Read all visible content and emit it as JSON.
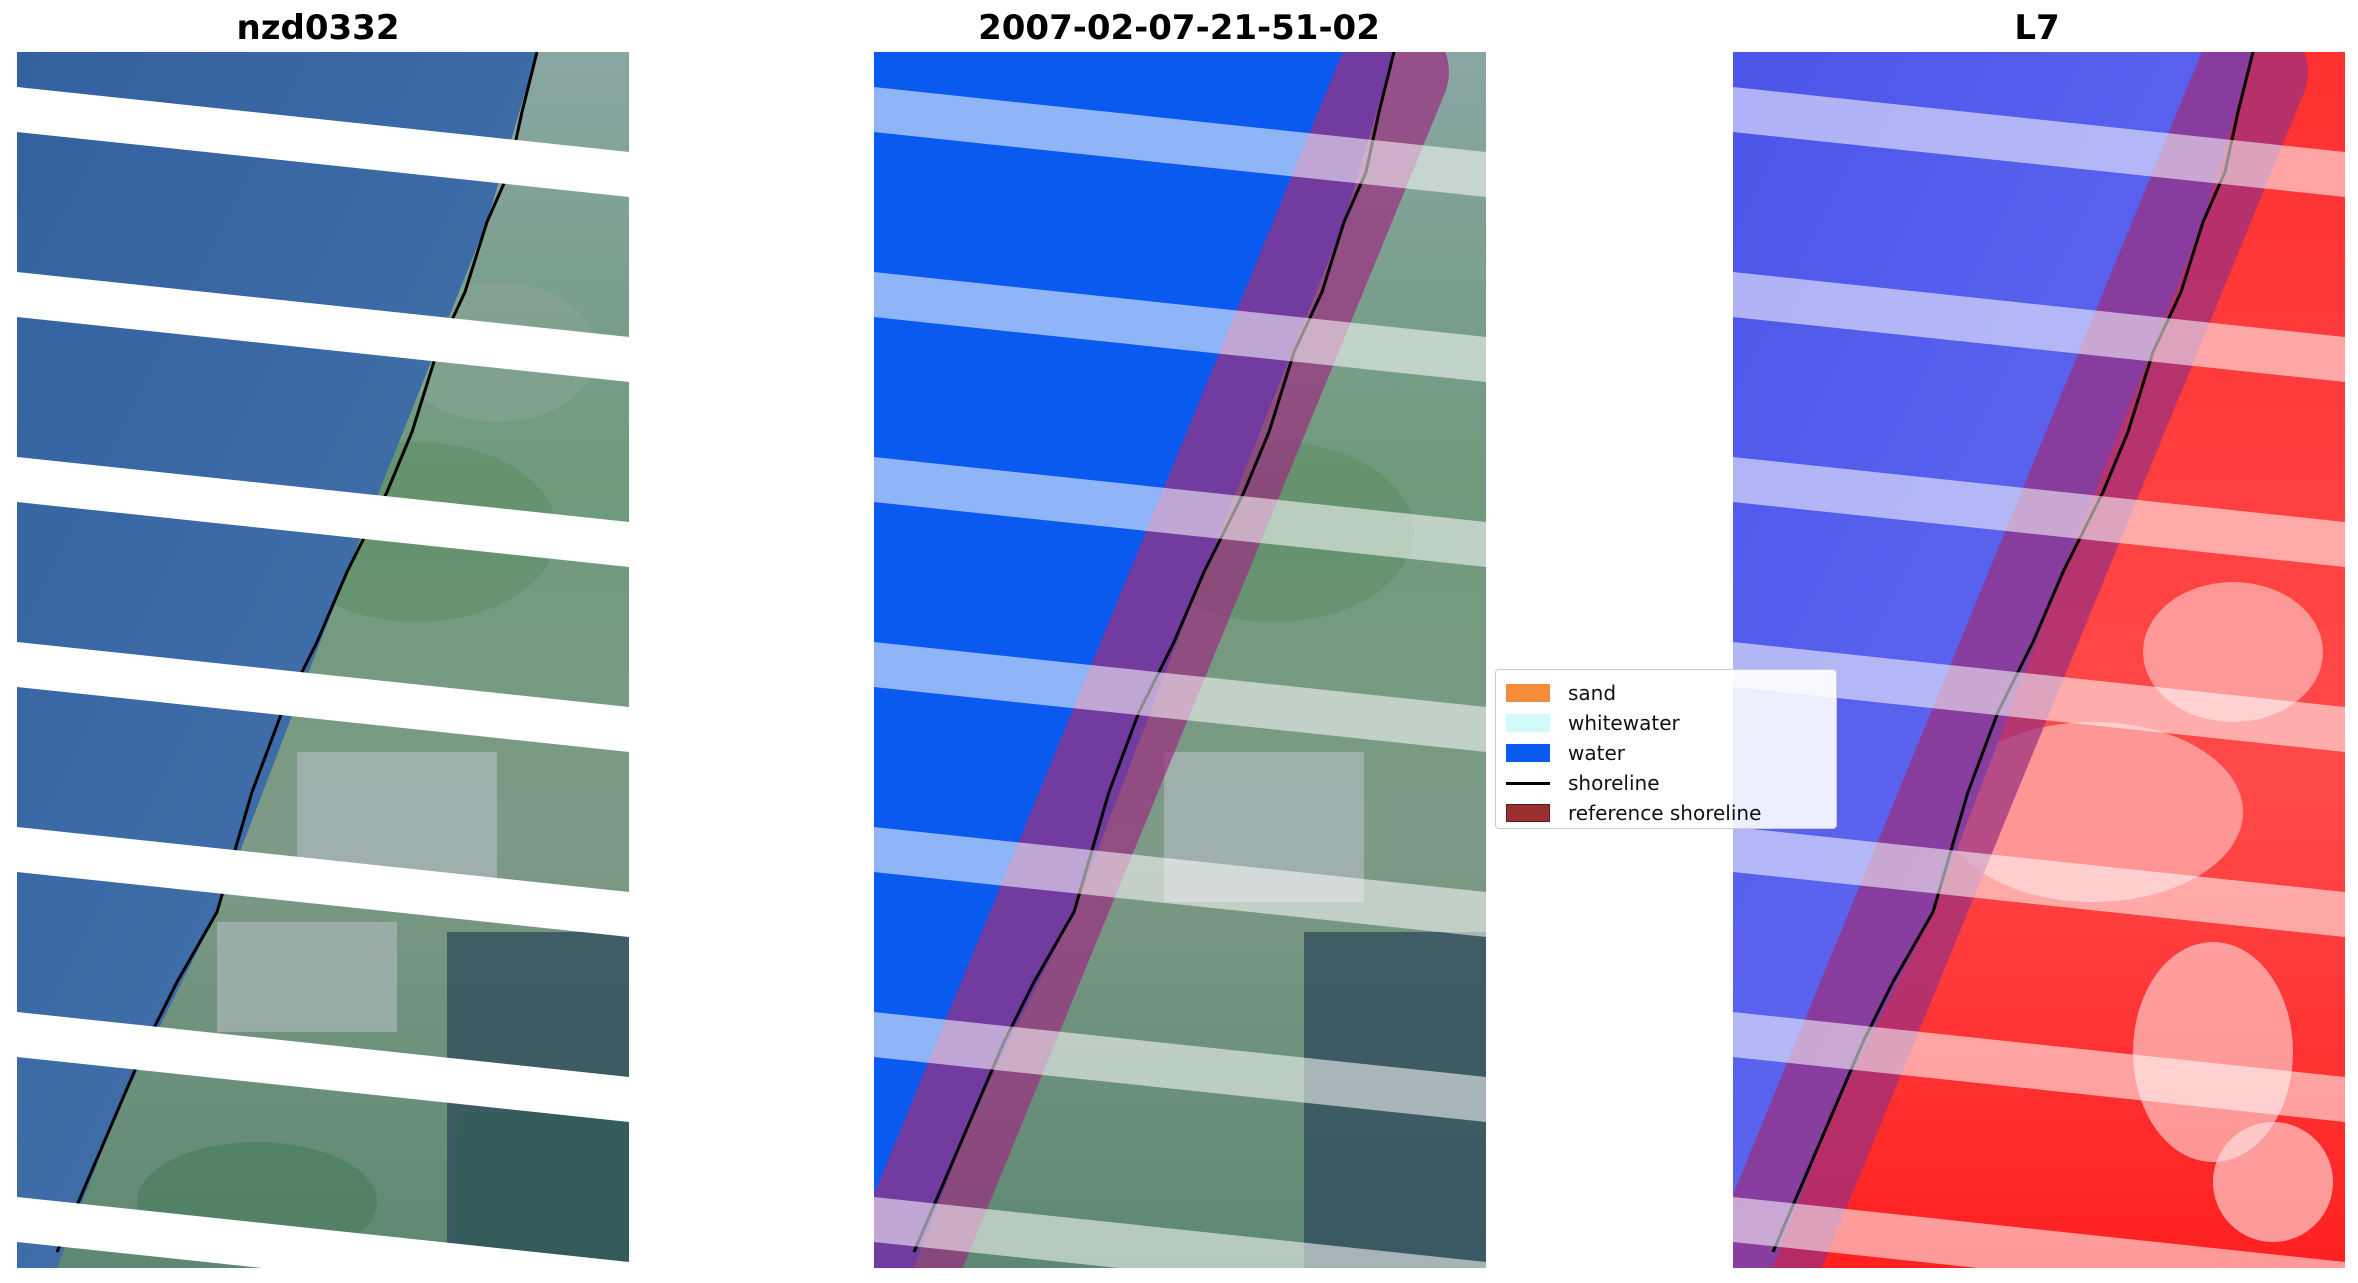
{
  "panels": [
    {
      "title": "nzd0332"
    },
    {
      "title": "2007-02-07-21-51-02"
    },
    {
      "title": "L7"
    }
  ],
  "legend": {
    "items": [
      {
        "label": "sand",
        "color": "#f58c3c",
        "kind": "patch"
      },
      {
        "label": "whitewater",
        "color": "#d2fafa",
        "kind": "patch"
      },
      {
        "label": "water",
        "color": "#0a5af0",
        "kind": "patch"
      },
      {
        "label": "shoreline",
        "color": "#000000",
        "kind": "line"
      },
      {
        "label": "reference shoreline",
        "color": "#9b3030",
        "kind": "patch"
      }
    ]
  },
  "colors": {
    "ocean_rgb": "#3d6aa8",
    "land_rgb": "#6e9a7c",
    "water_class": "#0a5af0",
    "buffer_overlay": "#c0508c",
    "nodata_stripe": "#ffffff",
    "mndwi_water": "#5a64f0",
    "mndwi_land": "#ff3a3a"
  }
}
